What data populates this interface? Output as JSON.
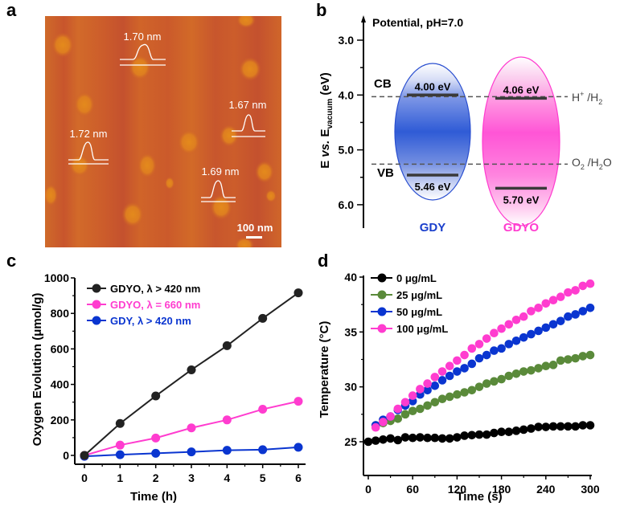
{
  "panels": {
    "a": {
      "letter": "a",
      "type": "afm-image",
      "height_labels": [
        "1.70 nm",
        "1.67 nm",
        "1.72 nm",
        "1.69 nm"
      ],
      "scale_bar": "100 nm",
      "colors": {
        "background": "#c9582a",
        "particle": "#e0801e",
        "trace": "#ffffff"
      }
    },
    "b": {
      "letter": "b",
      "title": "Potential, pH=7.0",
      "ylabel_parts": [
        "E ",
        "vs.",
        " E",
        "vacuum",
        " (eV)"
      ],
      "ticks": [
        "3.0",
        "4.0",
        "5.0",
        "6.0"
      ],
      "cb_label": "CB",
      "vb_label": "VB",
      "ref_h": {
        "main": "H",
        "sup": "+",
        "rest": " /H",
        "sub": "2"
      },
      "ref_o": {
        "a": "O",
        "sub1": "2",
        "b": " /H",
        "sub2": "2",
        "c": "O"
      },
      "materials": [
        {
          "name": "GDY",
          "cb": "4.00 eV",
          "vb": "5.46 eV",
          "color": "#1a3fcc"
        },
        {
          "name": "GDYO",
          "cb": "4.06 eV",
          "vb": "5.70 eV",
          "color": "#ff3ccf"
        }
      ]
    }
  },
  "chart_data": [
    {
      "panel": "b",
      "type": "band-diagram",
      "title": "Potential, pH=7.0",
      "ylabel": "E vs. E_vacuum (eV)",
      "ylim": [
        2.5,
        6.5
      ],
      "yticks": [
        3.0,
        4.0,
        5.0,
        6.0
      ],
      "reference_levels": [
        {
          "name": "H+/H2",
          "value": 4.03
        },
        {
          "name": "O2/H2O",
          "value": 5.26
        }
      ],
      "series": [
        {
          "name": "GDY",
          "cb": 4.0,
          "vb": 5.46,
          "color": "#1a3fcc"
        },
        {
          "name": "GDYO",
          "cb": 4.06,
          "vb": 5.7,
          "color": "#ff3ccf"
        }
      ]
    },
    {
      "panel": "c",
      "letter": "c",
      "type": "line",
      "title": "",
      "xlabel": "Time (h)",
      "ylabel": "Oxygen Evolution (μmol/g)",
      "xlim": [
        -0.2,
        6.2
      ],
      "ylim": [
        -40,
        1000
      ],
      "xticks": [
        "0",
        "1",
        "2",
        "3",
        "4",
        "5",
        "6"
      ],
      "yticks": [
        "0",
        "200",
        "400",
        "600",
        "800",
        "1000"
      ],
      "legend": "top-left",
      "x": [
        0,
        1,
        2,
        3,
        4,
        5,
        6
      ],
      "series": [
        {
          "name": "GDYO, λ > 420 nm",
          "color": "#222222",
          "label_color": "#000000",
          "values": [
            0,
            180,
            335,
            482,
            618,
            772,
            916
          ]
        },
        {
          "name": "GDYO, λ = 660 nm",
          "color": "#ff3ccf",
          "label_color": "#ff3ccf",
          "values": [
            0,
            58,
            98,
            155,
            200,
            260,
            305
          ]
        },
        {
          "name": "GDY, λ > 420 nm",
          "color": "#0a35d0",
          "label_color": "#0a35d0",
          "values": [
            -5,
            4,
            12,
            20,
            29,
            32,
            46
          ]
        }
      ]
    },
    {
      "panel": "d",
      "letter": "d",
      "type": "scatter",
      "title": "",
      "xlabel": "Time (s)",
      "ylabel": "Temperature (°C)",
      "xlim": [
        -5,
        300
      ],
      "ylim": [
        23,
        40
      ],
      "xticks": [
        "0",
        "60",
        "120",
        "180",
        "240",
        "300"
      ],
      "yticks": [
        "25",
        "30",
        "35",
        "40"
      ],
      "legend": "top-left",
      "x": [
        0,
        10,
        20,
        30,
        40,
        50,
        60,
        70,
        80,
        90,
        100,
        110,
        120,
        130,
        140,
        150,
        160,
        170,
        180,
        190,
        200,
        210,
        220,
        230,
        240,
        250,
        260,
        270,
        280,
        290,
        300
      ],
      "series": [
        {
          "name": "0 μg/mL",
          "color": "#000000",
          "values": [
            25.0,
            25.1,
            25.2,
            25.3,
            25.15,
            25.4,
            25.35,
            25.4,
            25.35,
            25.35,
            25.3,
            25.3,
            25.4,
            25.55,
            25.6,
            25.65,
            25.65,
            25.8,
            25.9,
            25.9,
            26.0,
            26.1,
            26.2,
            26.35,
            26.35,
            26.4,
            26.4,
            26.4,
            26.4,
            26.5,
            26.5
          ]
        },
        {
          "name": "25 μg/mL",
          "color": "#5a8a3a",
          "values": [
            null,
            26.5,
            26.7,
            26.9,
            27.1,
            27.5,
            27.8,
            28.0,
            28.3,
            28.6,
            28.9,
            29.1,
            29.3,
            29.5,
            29.7,
            30.0,
            30.3,
            30.5,
            30.7,
            31.0,
            31.2,
            31.4,
            31.5,
            31.7,
            31.9,
            32.0,
            32.4,
            32.5,
            32.6,
            32.8,
            32.9
          ]
        },
        {
          "name": "50 μg/mL",
          "color": "#0a35d0",
          "values": [
            null,
            26.5,
            27.0,
            27.3,
            27.9,
            28.3,
            28.7,
            29.3,
            29.7,
            30.1,
            30.6,
            31.0,
            31.4,
            31.7,
            32.1,
            32.6,
            32.9,
            33.3,
            33.5,
            33.9,
            34.2,
            34.5,
            34.8,
            35.1,
            35.4,
            35.7,
            36.0,
            36.4,
            36.6,
            36.9,
            37.2
          ]
        },
        {
          "name": "100 μg/mL",
          "color": "#ff3ccf",
          "values": [
            null,
            26.3,
            26.8,
            27.3,
            28.0,
            28.6,
            29.2,
            29.8,
            30.3,
            30.9,
            31.4,
            31.9,
            32.4,
            32.9,
            33.5,
            33.9,
            34.4,
            34.9,
            35.3,
            35.7,
            36.1,
            36.4,
            36.9,
            37.2,
            37.6,
            37.9,
            38.2,
            38.6,
            38.8,
            39.2,
            39.4
          ]
        }
      ]
    }
  ]
}
